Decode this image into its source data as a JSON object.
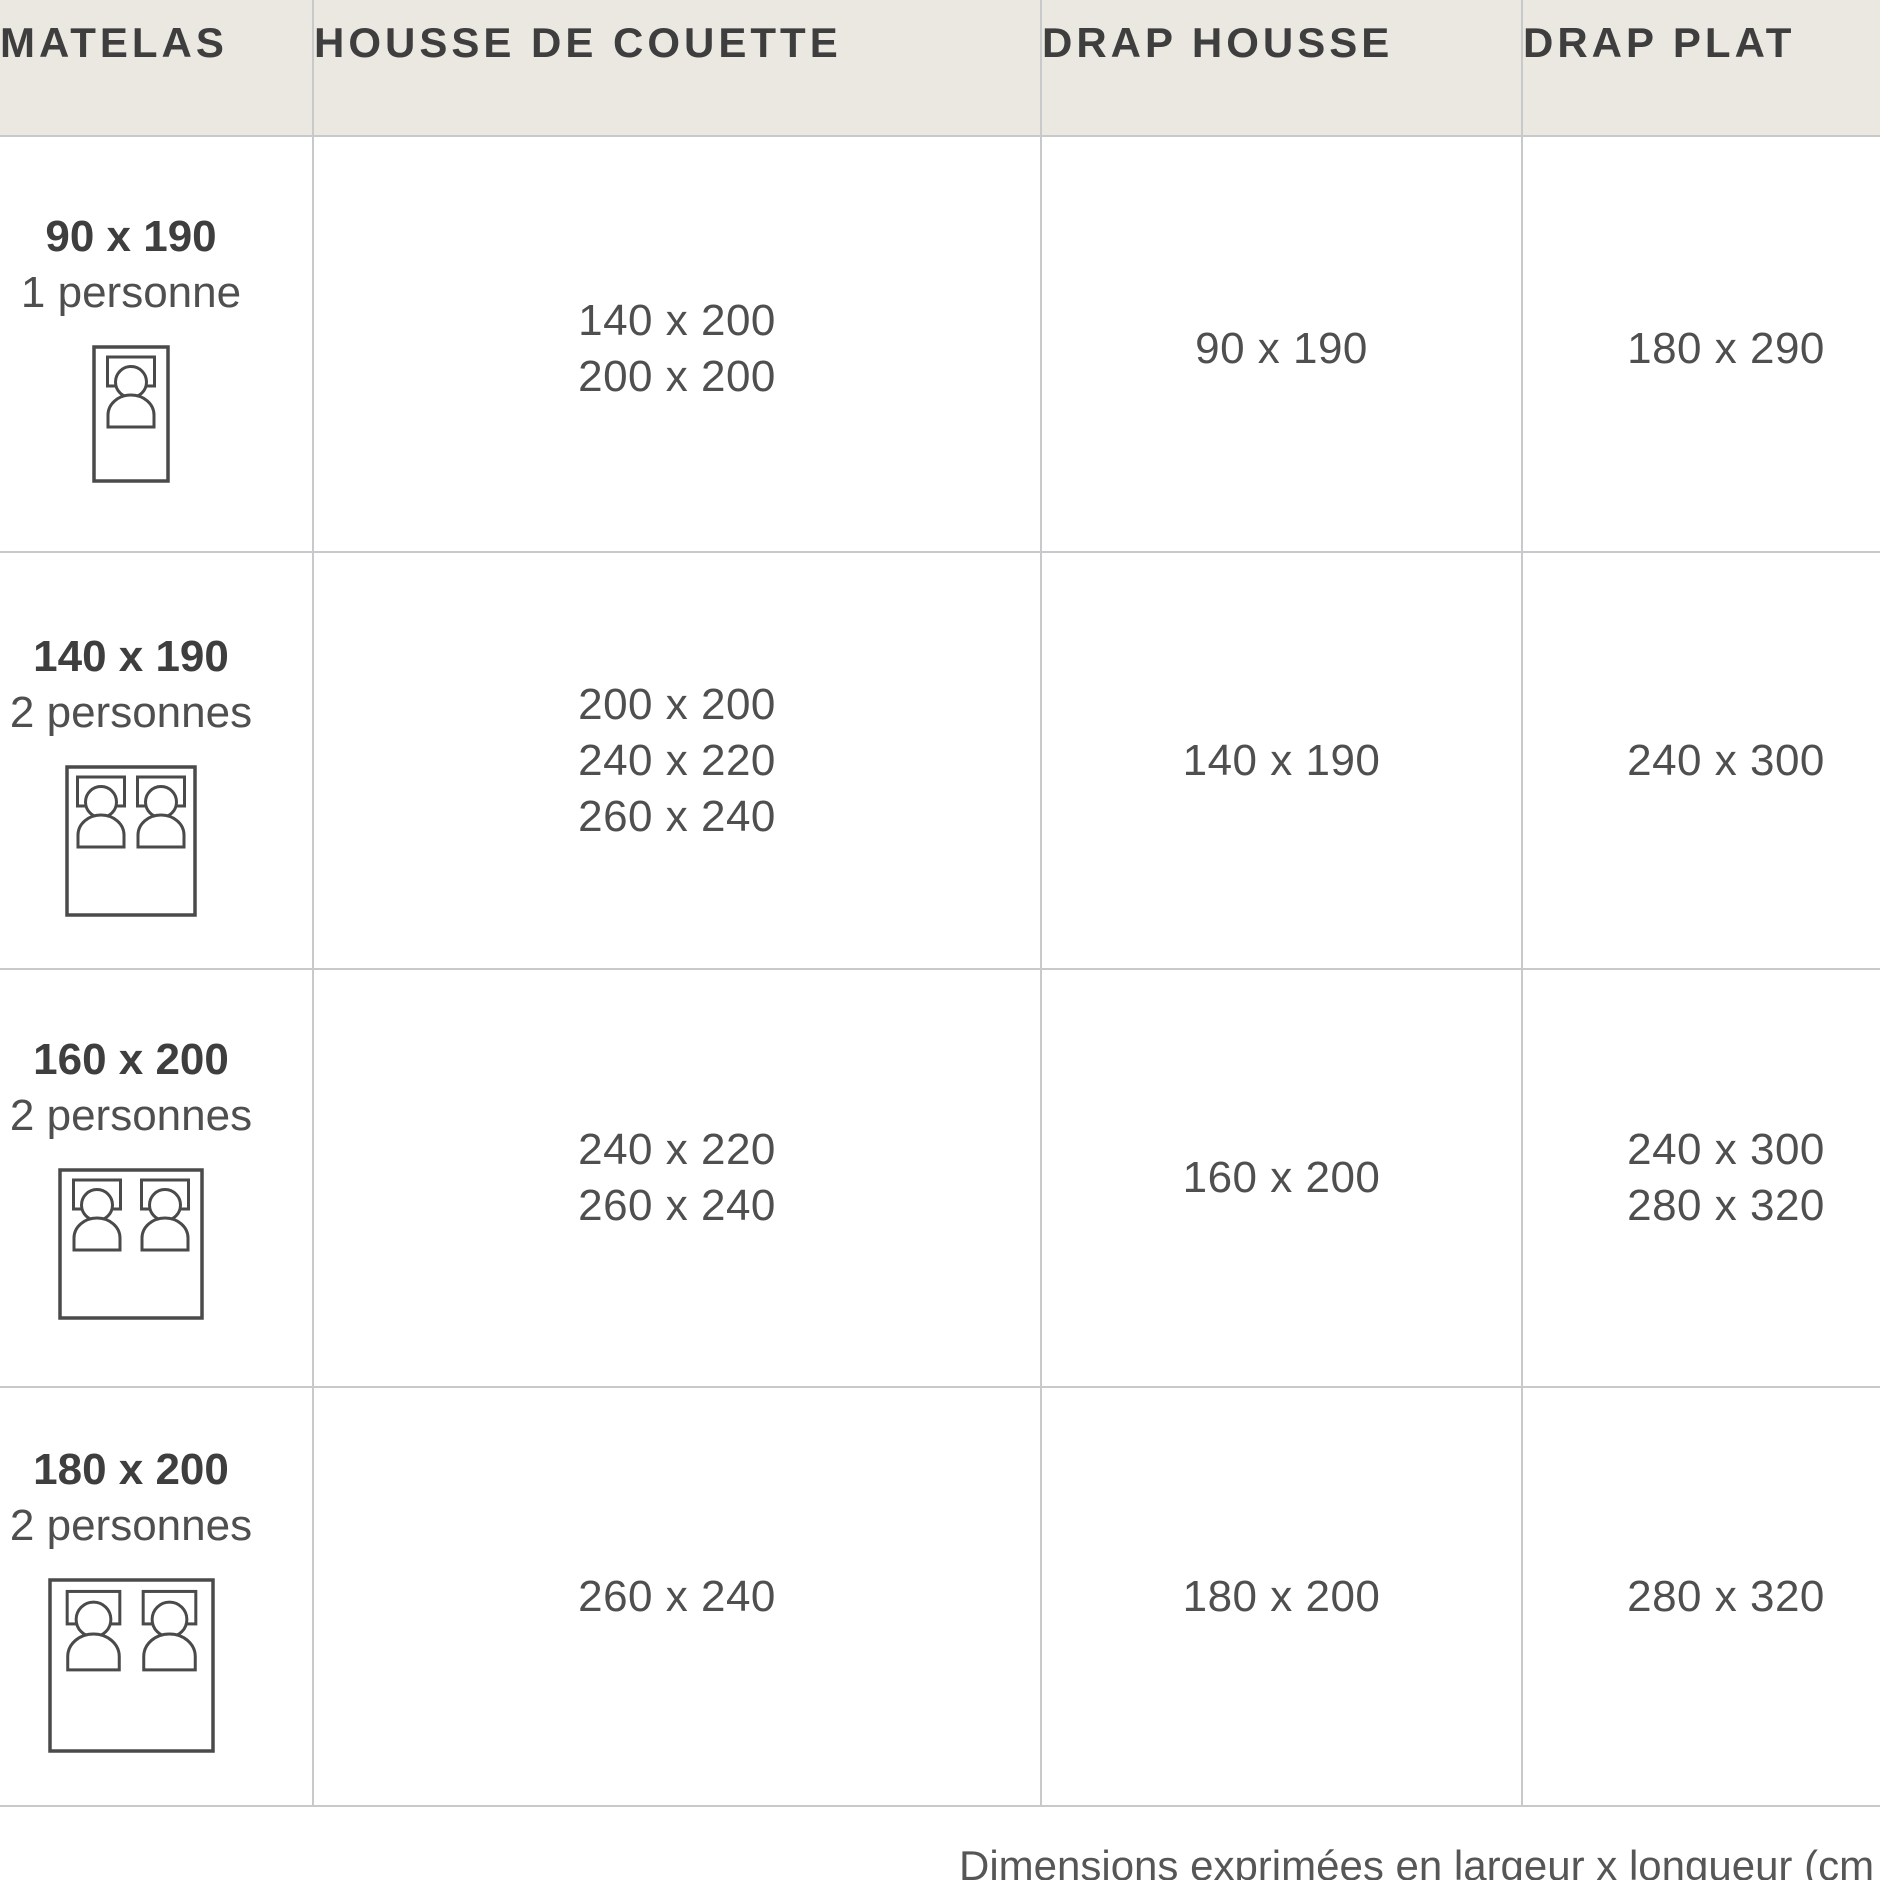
{
  "table": {
    "columns": [
      {
        "id": "matelas",
        "label": "MATELAS"
      },
      {
        "id": "housse",
        "label": "HOUSSE DE COUETTE"
      },
      {
        "id": "drap_housse",
        "label": "DRAP HOUSSE"
      },
      {
        "id": "drap_plat",
        "label": "DRAP PLAT"
      }
    ],
    "rows": [
      {
        "mattress_size": "90 x 190",
        "capacity": "1 personne",
        "icon": "single-bed-icon",
        "housse_de_couette": [
          "140 x 200",
          "200 x 200"
        ],
        "drap_housse": [
          "90 x 190"
        ],
        "drap_plat": [
          "180 x 290"
        ]
      },
      {
        "mattress_size": "140 x 190",
        "capacity": "2 personnes",
        "icon": "double-bed-icon",
        "housse_de_couette": [
          "200 x 200",
          "240 x 220",
          "260 x 240"
        ],
        "drap_housse": [
          "140 x 190"
        ],
        "drap_plat": [
          "240 x 300"
        ]
      },
      {
        "mattress_size": "160 x 200",
        "capacity": "2 personnes",
        "icon": "double-bed-icon",
        "housse_de_couette": [
          "240 x 220",
          "260 x 240"
        ],
        "drap_housse": [
          "160 x 200"
        ],
        "drap_plat": [
          "240 x 300",
          "280 x 320"
        ]
      },
      {
        "mattress_size": "180 x 200",
        "capacity": "2 personnes",
        "icon": "double-bed-icon",
        "housse_de_couette": [
          "260 x 240"
        ],
        "drap_housse": [
          "180 x 200"
        ],
        "drap_plat": [
          "280 x 320"
        ]
      }
    ]
  },
  "footer": {
    "note": "Dimensions exprimées en largeur x longueur (cm"
  },
  "colors": {
    "header_background": "#EBE8E2",
    "header_text": "#3E3E3E",
    "body_text": "#4F4F4F",
    "grid_border": "#C7C9CA",
    "icon_stroke": "#4A4A4A",
    "page_background": "#FFFFFF"
  }
}
